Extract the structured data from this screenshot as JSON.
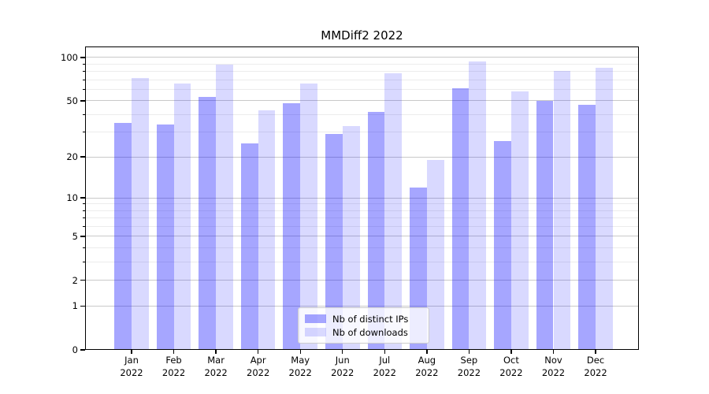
{
  "title": "MMDiff2 2022",
  "chart_data": {
    "type": "bar",
    "title": "MMDiff2 2022",
    "categories": [
      "Jan",
      "Feb",
      "Mar",
      "Apr",
      "May",
      "Jun",
      "Jul",
      "Aug",
      "Sep",
      "Oct",
      "Nov",
      "Dec"
    ],
    "x_tick_second_line": "2022",
    "series": [
      {
        "key": "distinct-ips",
        "name": "Nb of distinct IPs",
        "color": "#0000ff",
        "opacity": 0.35,
        "values": [
          35,
          34,
          53,
          25,
          48,
          29,
          42,
          12,
          61,
          26,
          50,
          47
        ]
      },
      {
        "key": "downloads",
        "name": "Nb of downloads",
        "color": "#0000ff",
        "opacity": 0.15,
        "values": [
          72,
          66,
          89,
          43,
          66,
          33,
          78,
          19,
          94,
          58,
          81,
          85
        ]
      }
    ],
    "yscale": "log1p",
    "y_major_ticks": [
      0,
      1,
      2,
      5,
      10,
      20,
      50,
      100
    ],
    "y_minor_ticks": [
      3,
      4,
      6,
      7,
      8,
      9,
      30,
      40,
      60,
      70,
      80,
      90
    ],
    "ylim": [
      0,
      119
    ],
    "grid": true,
    "legend_position": "lower center"
  },
  "colors": {
    "bar_base": "#0000ff",
    "major_grid": "#c9c9c9",
    "minor_grid": "#ececec",
    "spine": "#000000",
    "legend_border": "#cccccc"
  }
}
